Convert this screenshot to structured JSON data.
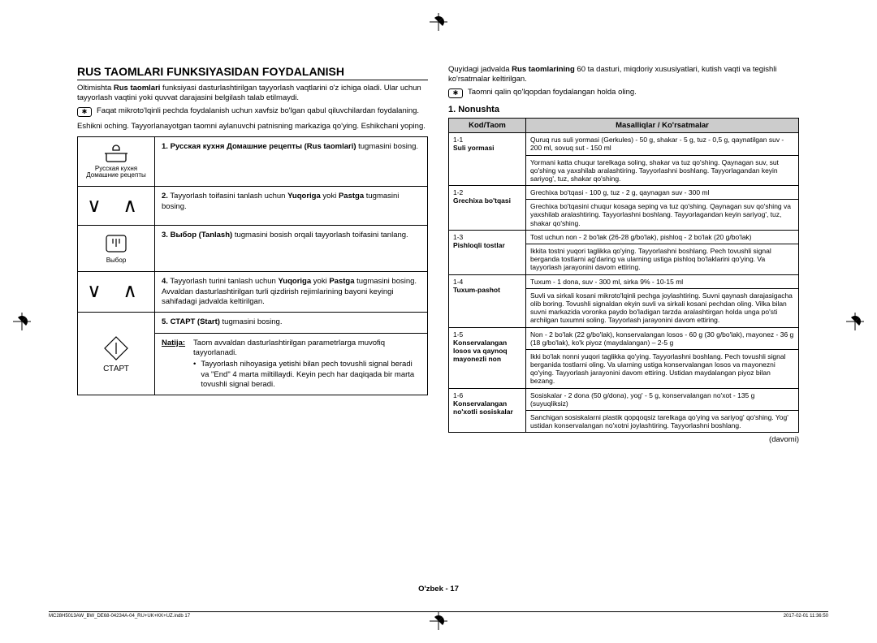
{
  "title": "RUS TAOMLARI FUNKSIYASIDAN FOYDALANISH",
  "intro1_a": "Oltimishta ",
  "intro1_b": "Rus taomlari",
  "intro1_c": " funksiyasi dasturlashtirilgan tayyorlash vaqtlarini o'z ichiga oladi. Ular uchun tayyorlash vaqtini yoki quvvat darajasini belgilash talab etilmaydi.",
  "note1": "Faqat mikroto'lqinli pechda foydalanish uchun xavfsiz bo'lgan qabul qiluvchilardan foydalaning.",
  "after_note": "Eshikni oching. Tayyorlanayotgan taomni aylanuvchi patnisning markaziga qo'ying. Eshikchani yoping.",
  "steps": [
    {
      "icon": "pot",
      "icon_label": "Русская кухня\nДомашние рецепты",
      "num": "1.",
      "bold": "Русская кухня Домашние рецепты (Rus taomlari)",
      "rest": " tugmasini bosing."
    },
    {
      "icon": "arrows",
      "icon_label": "",
      "num": "2.",
      "rest": "Tayyorlash toifasini tanlash uchun ",
      "bold2": "Yuqoriga",
      "mid": " yoki ",
      "bold3": "Pastga",
      "rest2": " tugmasini bosing."
    },
    {
      "icon": "select",
      "icon_label": "Выбор",
      "num": "3.",
      "bold": "Выбор (Tanlash)",
      "rest": " tugmasini bosish orqali tayyorlash toifasini tanlang."
    },
    {
      "icon": "arrows",
      "icon_label": "",
      "num": "4.",
      "rest": "Tayyorlash turini tanlash uchun ",
      "bold2": "Yuqoriga",
      "mid": " yoki ",
      "bold3": "Pastga",
      "rest2": " tugmasini bosing. Avvaldan dasturlashtirilgan turli qizdirish rejimlarining bayoni keyingi sahifadagi jadvalda keltirilgan."
    },
    {
      "icon": "start",
      "icon_label": "СТАРТ",
      "rowspan": true,
      "num": "5.",
      "bold": "СТАРТ (Start)",
      "rest": " tugmasini bosing.",
      "natija_label": "Natija:",
      "natija_text": "Taom avvaldan dasturlashtirilgan parametrlarga muvofiq tayyorlanadi.",
      "bullet": "Tayyorlash nihoyasiga yetishi bilan pech tovushli signal beradi va \"End\" 4 marta miltillaydi. Keyin pech har daqiqada bir marta tovushli signal beradi."
    }
  ],
  "right_intro_a": "Quyidagi jadvalda ",
  "right_intro_b": "Rus taomlarining",
  "right_intro_c": " 60 ta dasturi, miqdoriy xususiyatlari, kutish vaqti va tegishli ko'rsatmalar keltirilgan.",
  "note2": "Taomni qalin qo'lqopdan foydalangan holda oling.",
  "section1": "1. Nonushta",
  "th1": "Kod/Taom",
  "th2": "Masalliqlar / Ko'rsatmalar",
  "rows": [
    {
      "code": "1-1",
      "name": "Suli yormasi",
      "ing": "Quruq rus suli yormasi (Gerkules) - 50 g, shakar - 5 g, tuz - 0,5 g, qaynatilgan suv - 200 ml, sovuq sut - 150 ml",
      "ins": "Yormani katta chuqur tarelkaga soling, shakar va tuz qo'shing. Qaynagan suv, sut qo'shing va yaxshilab aralashtiring. Tayyorlashni boshlang. Tayyorlagandan keyin sariyog', tuz, shakar qo'shing."
    },
    {
      "code": "1-2",
      "name": "Grechixa bo'tqasi",
      "ing": "Grechixa bo'tqasi - 100 g, tuz - 2 g, qaynagan suv - 300 ml",
      "ins": "Grechixa bo'tqasini chuqur kosaga seping va tuz qo'shing. Qaynagan suv qo'shing va yaxshilab aralashtiring. Tayyorlashni boshlang. Tayyorlagandan keyin sariyog', tuz, shakar qo'shing."
    },
    {
      "code": "1-3",
      "name": "Pishloqli tostlar",
      "ing": "Tost uchun non - 2 bo'lak (26-28 g/bo'lak), pishloq - 2 bo'lak (20 g/bo'lak)",
      "ins": "Ikkita tostni yuqori taglikka qo'ying. Tayyorlashni boshlang. Pech tovushli signal berganda tostlarni ag'daring va ularning ustiga pishloq bo'laklarini qo'ying. Va tayyorlash jarayonini davom ettiring."
    },
    {
      "code": "1-4",
      "name": "Tuxum-pashot",
      "ing": "Tuxum - 1 dona, suv - 300 ml, sirka 9% - 10-15 ml",
      "ins": "Suvli va sirkali kosani mikroto'lqinli pechga joylashtiring. Suvni qaynash darajasigacha olib boring. Tovushli signaldan ekyin suvli va sirkali kosani pechdan oling. Vilka bilan suvni markazida voronka paydo bo'ladigan tarzda aralashtirgan holda unga po'sti archilgan tuxumni soling. Tayyorlash jarayonini davom ettiring."
    },
    {
      "code": "1-5",
      "name": "Konservalangan losos va qaynoq mayonezli non",
      "ing": "Non - 2 bo'lak (22 g/bo'lak), konservalangan losos - 60 g (30 g/bo'lak), mayonez - 36 g (18 g/bo'lak), ko'k piyoz (maydalangan) – 2-5 g",
      "ins": "Ikki bo'lak nonni yuqori taglikka qo'ying. Tayyorlashni boshlang. Pech tovushli signal berganida tostlarni oling. Va ularning ustiga konservalangan losos va mayonezni qo'ying. Tayyorlash jarayonini davom ettiring. Ustidan maydalangan piyoz bilan bezang."
    },
    {
      "code": "1-6",
      "name": "Konservalangan no'xotli sosiskalar",
      "ing": "Sosiskalar - 2 dona (50 g/dona), yog' - 5 g, konservalangan no'xot - 135 g (suyuqliksiz)",
      "ins": "Sanchigan sosiskalarni plastik qopqoqsiz tarelkaga qo'ying va sariyog' qo'shing. Yog' ustidan konservalangan no'xotni joylashtiring. Tayyorlashni boshlang."
    }
  ],
  "davomi": "(davomi)",
  "page_num": "O'zbek - 17",
  "footer_left": "MC28H5013AW_BW_DE68-04234A-04_RU+UK+KK+UZ.indb   17",
  "footer_right": "2017-02-01   11:36:50"
}
